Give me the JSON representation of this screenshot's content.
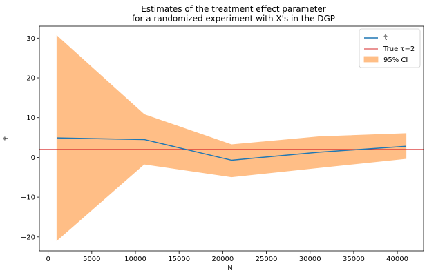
{
  "chart_data": {
    "type": "line",
    "title_lines": [
      "Estimates of the treatment effect parameter",
      "for a randomized experiment with X's in the DGP"
    ],
    "xlabel": "N",
    "ylabel": "τ̂",
    "xlim": [
      -1000,
      43000
    ],
    "ylim": [
      -23.5,
      33
    ],
    "x_ticks": [
      0,
      5000,
      10000,
      15000,
      20000,
      25000,
      30000,
      35000,
      40000
    ],
    "y_ticks": [
      -20,
      -10,
      0,
      10,
      20,
      30
    ],
    "grid": false,
    "legend_position": "top-right",
    "x": [
      1000,
      11000,
      21000,
      31000,
      41000
    ],
    "series": [
      {
        "name": "τ̂",
        "kind": "line",
        "color": "#1f77b4",
        "values": [
          4.9,
          4.5,
          -0.7,
          1.3,
          2.8
        ]
      }
    ],
    "band": {
      "name": "95% CI",
      "color": "#ffbe86",
      "lower": [
        -20.9,
        -1.7,
        -4.9,
        -2.6,
        -0.3
      ],
      "upper": [
        30.6,
        10.8,
        3.2,
        5.2,
        6.0
      ]
    },
    "reference_line": {
      "name": "True τ=2",
      "color": "#d62728",
      "value": 2
    }
  }
}
